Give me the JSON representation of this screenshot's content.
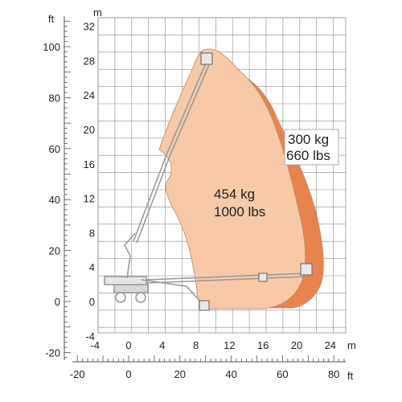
{
  "colors": {
    "grid": "#8c8c8c",
    "axis": "#555555",
    "envelope_light": "#f7c9a6",
    "envelope_dark": "#e8834e",
    "envelope_edge": "#b58a6a",
    "machine": "#9a9a9a"
  },
  "axes": {
    "meters_y_unit": "m",
    "feet_y_unit": "ft",
    "meters_x_unit": "m",
    "feet_x_unit": "ft",
    "meters_y_ticks": [
      32,
      28,
      24,
      20,
      16,
      12,
      8,
      4,
      0,
      -4
    ],
    "feet_y_ticks": [
      100,
      80,
      60,
      40,
      20,
      0,
      -20
    ],
    "meters_x_ticks": [
      -4,
      0,
      4,
      8,
      12,
      16,
      20,
      24
    ],
    "feet_x_ticks": [
      -20,
      0,
      20,
      40,
      60,
      80
    ]
  },
  "capacities": {
    "inner": {
      "kg": "454 kg",
      "lbs": "1000 lbs"
    },
    "outer": {
      "kg": "300 kg",
      "lbs": "660 lbs"
    }
  },
  "icons": {
    "machine": "boom-lift-icon",
    "platform": "platform-basket-icon"
  }
}
